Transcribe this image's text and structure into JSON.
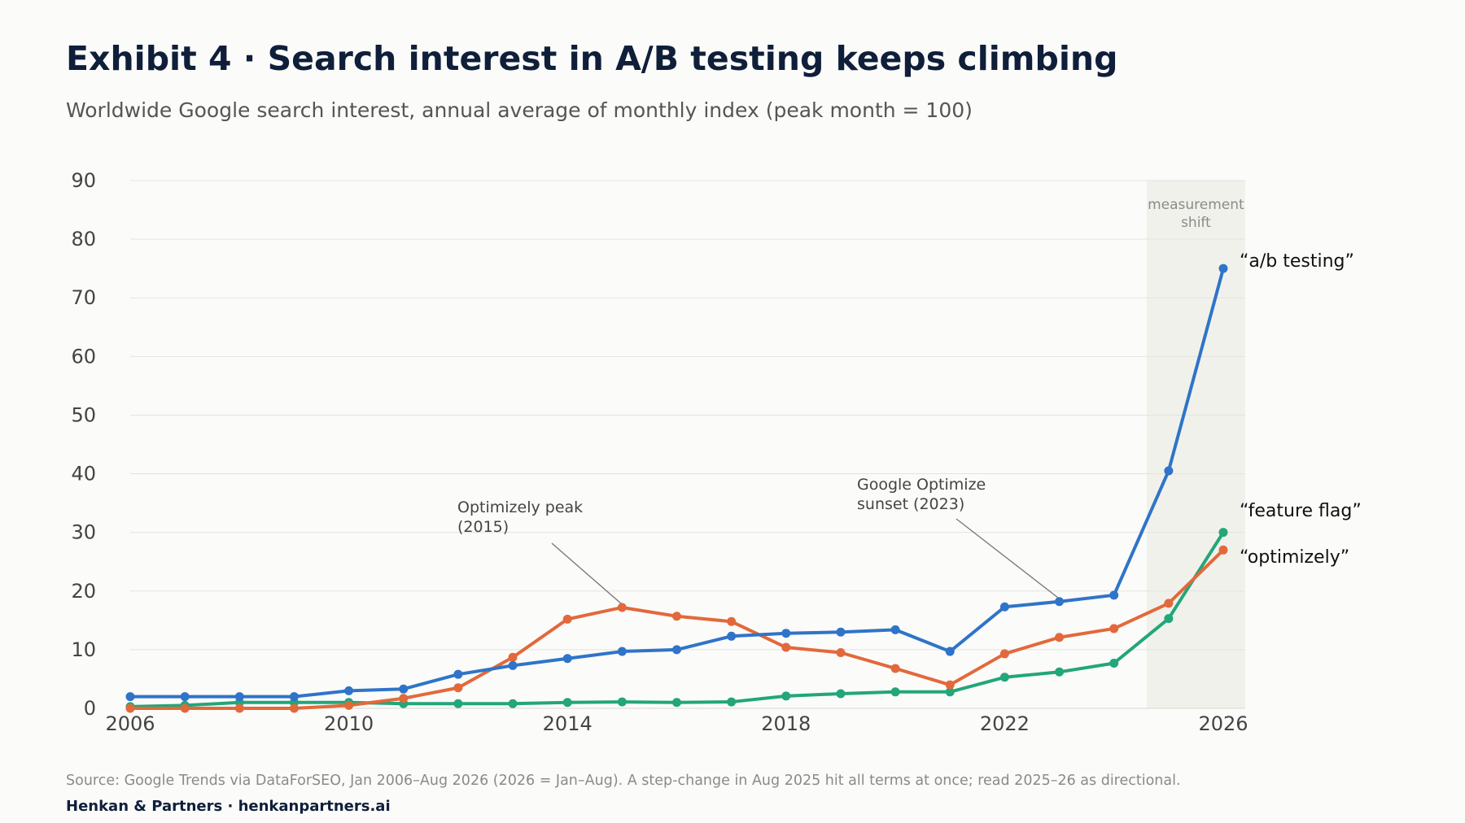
{
  "header": {
    "title": "Exhibit 4 · Search interest in A/B testing keeps climbing",
    "subtitle": "Worldwide Google search interest, annual average of monthly index (peak month = 100)"
  },
  "footer": {
    "source": "Source: Google Trends via DataForSEO, Jan 2006–Aug 2026 (2026 = Jan–Aug). A step-change in Aug 2025 hit all terms at once; read 2025–26 as directional.",
    "credit": "Henkan & Partners · henkanpartners.ai"
  },
  "chart_data": {
    "type": "line",
    "title": "Exhibit 4 · Search interest in A/B testing keeps climbing",
    "subtitle": "Worldwide Google search interest, annual average of monthly index (peak month = 100)",
    "xlabel": "",
    "ylabel": "",
    "x": [
      2006,
      2007,
      2008,
      2009,
      2010,
      2011,
      2012,
      2013,
      2014,
      2015,
      2016,
      2017,
      2018,
      2019,
      2020,
      2021,
      2022,
      2023,
      2024,
      2025,
      2026
    ],
    "xlim": [
      2006,
      2026
    ],
    "ylim": [
      0,
      90
    ],
    "xticks": [
      2006,
      2010,
      2014,
      2018,
      2022,
      2026
    ],
    "yticks": [
      0,
      10,
      20,
      30,
      40,
      50,
      60,
      70,
      80,
      90
    ],
    "grid": "horizontal",
    "legend": "direct labels at line ends (right)",
    "series": [
      {
        "name": "“a/b testing”",
        "color": "#2f74c8",
        "values": [
          2,
          2,
          2,
          2,
          3,
          3.3,
          5.8,
          7.3,
          8.5,
          9.7,
          10,
          12.3,
          12.8,
          13,
          13.4,
          9.7,
          17.3,
          18.2,
          19.3,
          40.5,
          75
        ]
      },
      {
        "name": "“optimizely”",
        "color": "#e2693b",
        "values": [
          0,
          0,
          0,
          0,
          0.5,
          1.7,
          3.5,
          8.7,
          15.2,
          17.2,
          15.7,
          14.8,
          10.4,
          9.5,
          6.8,
          4,
          9.3,
          12.1,
          13.6,
          17.9,
          27
        ]
      },
      {
        "name": "“feature flag”",
        "color": "#22a67a",
        "values": [
          0.3,
          0.5,
          1,
          1,
          1,
          0.8,
          0.8,
          0.8,
          1,
          1.1,
          1,
          1.1,
          2.1,
          2.5,
          2.8,
          2.8,
          5.3,
          6.2,
          7.7,
          15.3,
          30
        ]
      }
    ],
    "annotations": [
      {
        "text_lines": [
          "Optimizely peak",
          "(2015)"
        ],
        "points_to": {
          "x": 2015,
          "y": 17.2
        }
      },
      {
        "text_lines": [
          "Google Optimize",
          "sunset (2023)"
        ],
        "points_to": {
          "x": 2023,
          "y": 18.2
        }
      }
    ],
    "shaded_region": {
      "x_start": 2024.6,
      "x_end": 2026.4,
      "label_lines": [
        "measurement",
        "shift"
      ]
    }
  },
  "label_offsets_note": ""
}
